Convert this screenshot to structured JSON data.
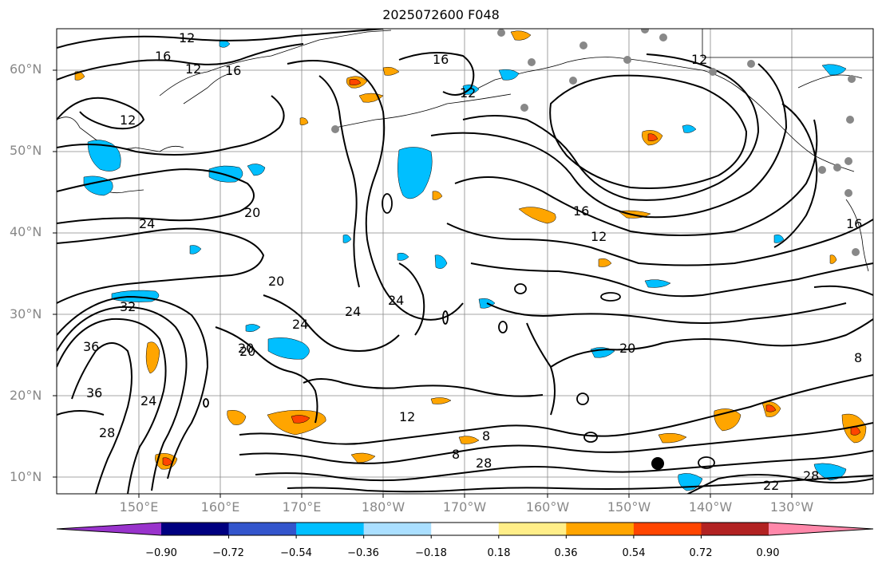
{
  "title": "2025072600 F048",
  "map": {
    "lat_labels": [
      "60°N",
      "50°N",
      "40°N",
      "30°N",
      "20°N",
      "10°N"
    ],
    "lon_labels": [
      "150°E",
      "160°E",
      "170°E",
      "180°W",
      "170°W",
      "160°W",
      "150°W",
      "140°W",
      "130°W"
    ],
    "contour_labels": [
      "12",
      "16",
      "12",
      "16",
      "12",
      "20",
      "24",
      "20",
      "24",
      "24",
      "24",
      "20",
      "16",
      "12",
      "12",
      "16",
      "12",
      "36",
      "32",
      "36",
      "28",
      "24",
      "20",
      "20",
      "12",
      "28",
      "8",
      "8",
      "22",
      "28",
      "16",
      "8"
    ]
  },
  "colorbar": {
    "ticks": [
      "−0.90",
      "−0.72",
      "−0.54",
      "−0.36",
      "−0.18",
      "0.18",
      "0.36",
      "0.54",
      "0.72",
      "0.90"
    ],
    "colors": [
      "#9933cc",
      "#000080",
      "#3355cc",
      "#00bfff",
      "#aadfff",
      "#ffffff",
      "#ffee88",
      "#ffa500",
      "#ff4500",
      "#b22222",
      "#ff88aa"
    ]
  }
}
